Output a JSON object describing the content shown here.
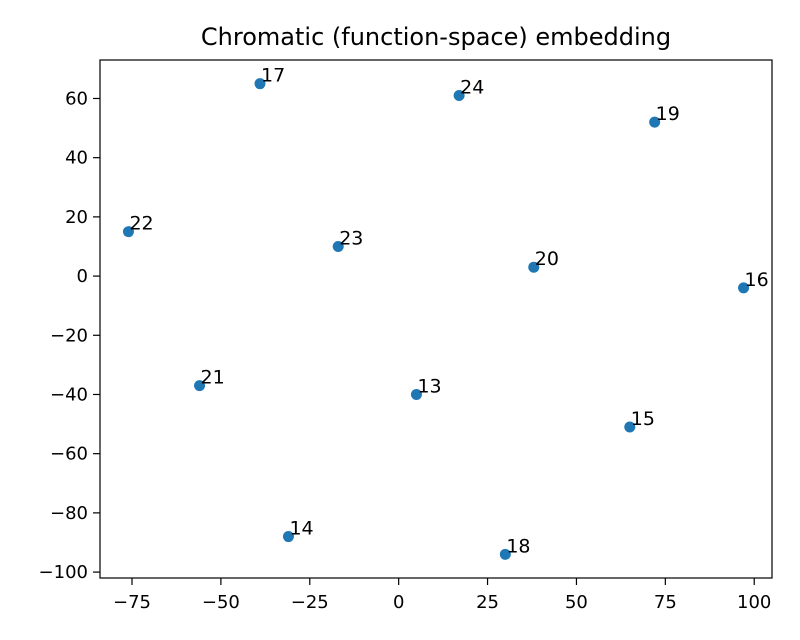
{
  "chart_data": {
    "type": "scatter",
    "title": "Chromatic (function-space) embedding",
    "xlabel": "",
    "ylabel": "",
    "xlim": [
      -84,
      105
    ],
    "ylim": [
      -102,
      73
    ],
    "xticks": [
      -75,
      -50,
      -25,
      0,
      25,
      50,
      75,
      100
    ],
    "yticks": [
      -100,
      -80,
      -60,
      -40,
      -20,
      0,
      20,
      40,
      60
    ],
    "grid": false,
    "marker_color": "#1f77b4",
    "points": [
      {
        "label": "13",
        "x": 5,
        "y": -40
      },
      {
        "label": "14",
        "x": -31,
        "y": -88
      },
      {
        "label": "15",
        "x": 65,
        "y": -51
      },
      {
        "label": "16",
        "x": 97,
        "y": -4
      },
      {
        "label": "17",
        "x": -39,
        "y": 65
      },
      {
        "label": "18",
        "x": 30,
        "y": -94
      },
      {
        "label": "19",
        "x": 72,
        "y": 52
      },
      {
        "label": "20",
        "x": 38,
        "y": 3
      },
      {
        "label": "21",
        "x": -56,
        "y": -37
      },
      {
        "label": "22",
        "x": -76,
        "y": 15
      },
      {
        "label": "23",
        "x": -17,
        "y": 10
      },
      {
        "label": "24",
        "x": 17,
        "y": 61
      }
    ]
  }
}
